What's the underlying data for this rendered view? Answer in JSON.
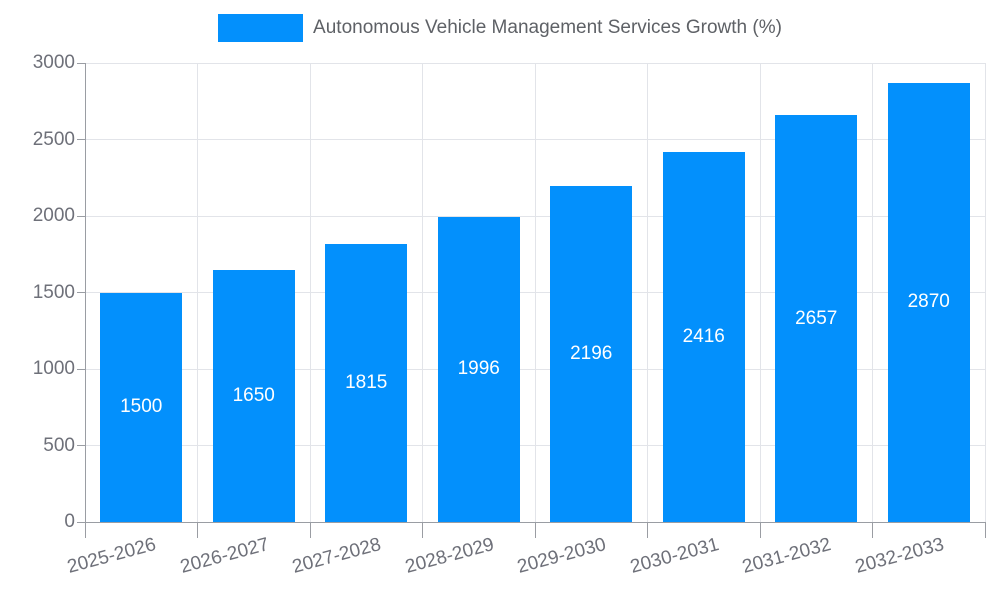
{
  "chart_data": {
    "type": "bar",
    "title": "Autonomous Vehicle Management Services Growth (%)",
    "legend": [
      "Autonomous Vehicle Management Services Growth (%)"
    ],
    "legend_position": "top-center",
    "categories": [
      "2025-2026",
      "2026-2027",
      "2027-2028",
      "2028-2029",
      "2029-2030",
      "2030-2031",
      "2031-2032",
      "2032-2033"
    ],
    "values": [
      1500,
      1650,
      1815,
      1996,
      2196,
      2416,
      2657,
      2870
    ],
    "value_labels": [
      "1500",
      "1650",
      "1815",
      "1996",
      "2196",
      "2416",
      "2657",
      "2870"
    ],
    "xlabel": "",
    "ylabel": "",
    "ylim": [
      0,
      3000
    ],
    "yticks": [
      0,
      500,
      1000,
      1500,
      2000,
      2500,
      3000
    ],
    "grid": "horizontal and vertical light gray gridlines",
    "bar_color": "#0390FC",
    "value_label_color": "#FFFFFF",
    "axis_label_color": "#6E7079",
    "axis_line_color": "#9A9DA3",
    "grid_line_color": "#E2E4E9",
    "x_label_rotation_deg": -15
  }
}
